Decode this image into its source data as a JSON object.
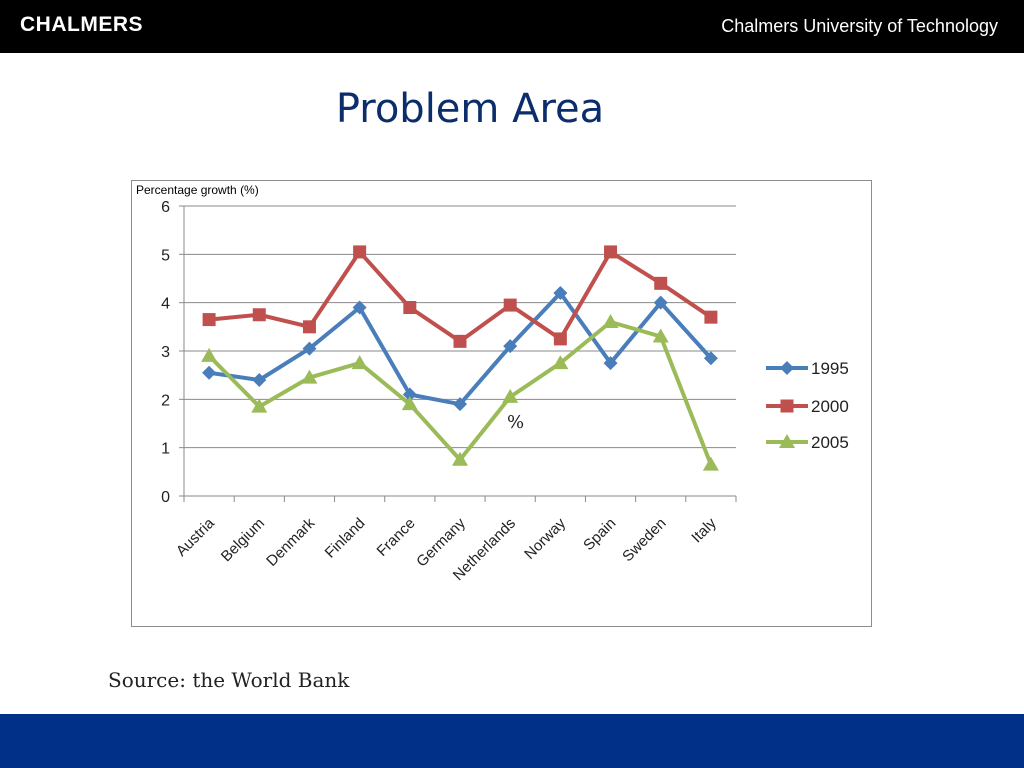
{
  "header": {
    "logo_text": "CHALMERS",
    "university": "Chalmers University of Technology"
  },
  "slide": {
    "title": "Problem Area",
    "source": "Source: the World Bank"
  },
  "colors": {
    "header_bg": "#000000",
    "footer_bg": "#003087",
    "title": "#0b2d6b"
  },
  "chart_data": {
    "type": "line",
    "title": "",
    "ylabel": "Percentage growth (%)",
    "xlabel": "",
    "annotation": "%",
    "categories": [
      "Austria",
      "Belgium",
      "Denmark",
      "Finland",
      "France",
      "Germany",
      "Netherlands",
      "Norway",
      "Spain",
      "Sweden",
      "Italy"
    ],
    "ylim": [
      0,
      6
    ],
    "yticks": [
      0,
      1,
      2,
      3,
      4,
      5,
      6
    ],
    "grid": true,
    "legend_position": "right",
    "series": [
      {
        "name": "1995",
        "color": "#4a7ebb",
        "marker": "diamond",
        "values": [
          2.55,
          2.4,
          3.05,
          3.9,
          2.1,
          1.9,
          3.1,
          4.2,
          2.75,
          4.0,
          2.85
        ]
      },
      {
        "name": "2000",
        "color": "#c0504d",
        "marker": "square",
        "values": [
          3.65,
          3.75,
          3.5,
          5.05,
          3.9,
          3.2,
          3.95,
          3.25,
          5.05,
          4.4,
          3.7
        ]
      },
      {
        "name": "2005",
        "color": "#9bbb59",
        "marker": "triangle",
        "values": [
          2.9,
          1.85,
          2.45,
          2.75,
          1.9,
          0.75,
          2.05,
          2.75,
          3.6,
          3.3,
          0.65
        ]
      }
    ]
  }
}
